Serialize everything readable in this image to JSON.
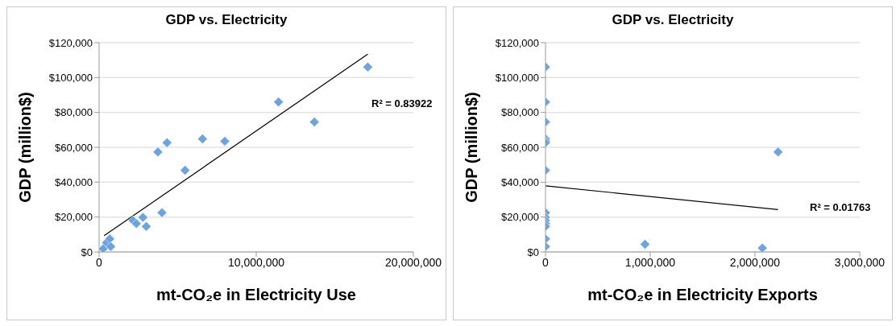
{
  "chart_data": [
    {
      "type": "scatter",
      "title": "GDP vs. Electricity",
      "xlabel": "mt-CO₂e in Electricity Use",
      "ylabel": "GDP (million$)",
      "grid": "y",
      "marker": "diamond",
      "legend": false,
      "xlim": [
        0,
        20000000
      ],
      "xticks": [
        0,
        {
          "value": 10000000,
          "label": "10,000,000"
        },
        {
          "value": 20000000,
          "label": "20,000,000"
        }
      ],
      "ylim": [
        0,
        120000
      ],
      "yticks": [
        {
          "value": 0,
          "label": "$0"
        },
        {
          "value": 20000,
          "label": "$20,000"
        },
        {
          "value": 40000,
          "label": "$40,000"
        },
        {
          "value": 60000,
          "label": "$60,000"
        },
        {
          "value": 80000,
          "label": "$80,000"
        },
        {
          "value": 100000,
          "label": "$100,000"
        },
        {
          "value": 120000,
          "label": "$120,000"
        }
      ],
      "series": [
        {
          "type": "scatter",
          "color": "#6fa3dc",
          "x": [
            260000,
            470000,
            680000,
            740000,
            2160000,
            2370000,
            2790000,
            3000000,
            4000000,
            3740000,
            4320000,
            5470000,
            6580000,
            8000000,
            11420000,
            13700000,
            17100000
          ],
          "values": [
            1800,
            5300,
            7500,
            3100,
            18000,
            16300,
            19800,
            14600,
            22500,
            57300,
            62600,
            46800,
            64800,
            63500,
            86000,
            74500,
            106000
          ]
        },
        {
          "type": "line",
          "color": "#000000",
          "marker": "none",
          "x": [
            320000,
            17100000
          ],
          "values": [
            9300,
            113400
          ]
        }
      ],
      "annotations": [
        "R² = 0.83922"
      ]
    },
    {
      "type": "scatter",
      "title": "GDP vs. Electricity",
      "xlabel": "mt-CO₂e in Electricity Exports",
      "ylabel": "GDP (million$)",
      "grid": "y",
      "marker": "diamond",
      "legend": false,
      "xlim": [
        0,
        3000000
      ],
      "xticks": [
        0,
        {
          "value": 1000000,
          "label": "1,000,000"
        },
        {
          "value": 2000000,
          "label": "2,000,000"
        },
        {
          "value": 3000000,
          "label": "3,000,000"
        }
      ],
      "ylim": [
        0,
        120000
      ],
      "yticks": [
        {
          "value": 0,
          "label": "$0"
        },
        {
          "value": 20000,
          "label": "$20,000"
        },
        {
          "value": 40000,
          "label": "$40,000"
        },
        {
          "value": 60000,
          "label": "$60,000"
        },
        {
          "value": 80000,
          "label": "$80,000"
        },
        {
          "value": 100000,
          "label": "$100,000"
        },
        {
          "value": 120000,
          "label": "$120,000"
        }
      ],
      "series": [
        {
          "type": "scatter",
          "color": "#6fa3dc",
          "x": [
            0,
            0,
            0,
            0,
            0,
            0,
            0,
            0,
            0,
            0,
            0,
            0,
            0,
            0,
            950000,
            2070000,
            2220000
          ],
          "values": [
            106000,
            86000,
            74500,
            64800,
            63500,
            62600,
            46800,
            22500,
            19800,
            18000,
            16300,
            14600,
            7500,
            3100,
            4400,
            2200,
            57300
          ]
        },
        {
          "type": "line",
          "color": "#000000",
          "marker": "none",
          "x": [
            0,
            2220000
          ],
          "values": [
            37900,
            24300
          ]
        }
      ],
      "annotations": [
        "R² = 0.01763"
      ]
    }
  ]
}
